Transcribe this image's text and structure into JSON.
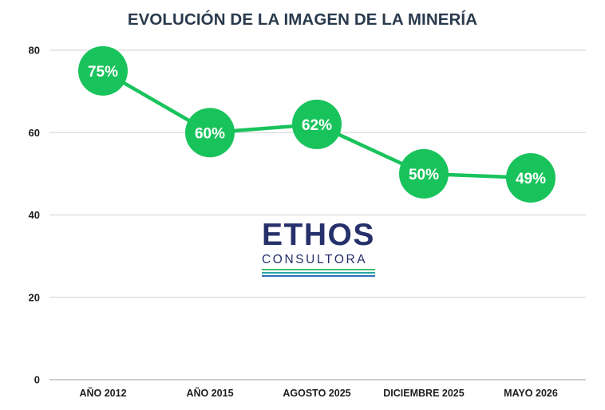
{
  "chart_data": {
    "type": "line",
    "title": "EVOLUCIÓN DE LA IMAGEN DE LA MINERÍA",
    "categories": [
      "AÑO 2012",
      "AÑO 2015",
      "AGOSTO 2025",
      "DICIEMBRE 2025",
      "MAYO 2026"
    ],
    "values": [
      75,
      60,
      62,
      50,
      49
    ],
    "data_labels": [
      "75%",
      "60%",
      "62%",
      "50%",
      "49%"
    ],
    "yticks": [
      "0",
      "20",
      "40",
      "60",
      "80"
    ],
    "ylim": [
      0,
      80
    ],
    "grid": true,
    "colors": {
      "line": "#19c35c",
      "grid": "#d9d9d9",
      "axis": "#bdbdbd"
    }
  },
  "logo": {
    "word": "ETHOS",
    "sub": "CONSULTORA",
    "colors": {
      "navy": "#26306b",
      "green": "#3fbf6a",
      "teal": "#2aa6a8",
      "blue": "#2e6fb8"
    }
  }
}
